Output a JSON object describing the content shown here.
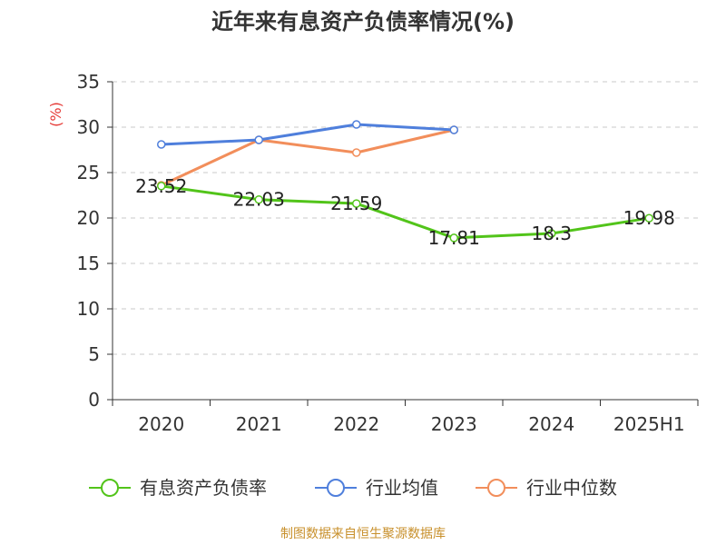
{
  "chart_data": {
    "type": "line",
    "title": "近年来有息资产负债率情况(%)",
    "ylabel": "(%)",
    "xlabel": "",
    "categories": [
      "2020",
      "2021",
      "2022",
      "2023",
      "2024",
      "2025H1"
    ],
    "yticks": [
      "0",
      "5",
      "10",
      "15",
      "20",
      "25",
      "30",
      "35"
    ],
    "ylim": [
      0,
      35
    ],
    "grid": true,
    "legend_position": "bottom",
    "series": [
      {
        "name": "有息资产负债率",
        "color": "#52c41a",
        "values": [
          23.52,
          22.03,
          21.59,
          17.81,
          18.3,
          19.98
        ],
        "labels": [
          "23.52",
          "22.03",
          "21.59",
          "17.81",
          "18.3",
          "19.98"
        ]
      },
      {
        "name": "行业均值",
        "color": "#4f7fdc",
        "values": [
          28.1,
          28.6,
          30.3,
          29.7,
          null,
          null
        ]
      },
      {
        "name": "行业中位数",
        "color": "#f28e5b",
        "values": [
          23.6,
          28.6,
          27.2,
          29.7,
          null,
          null
        ]
      }
    ]
  },
  "footer": {
    "source": "制图数据来自恒生聚源数据库"
  }
}
